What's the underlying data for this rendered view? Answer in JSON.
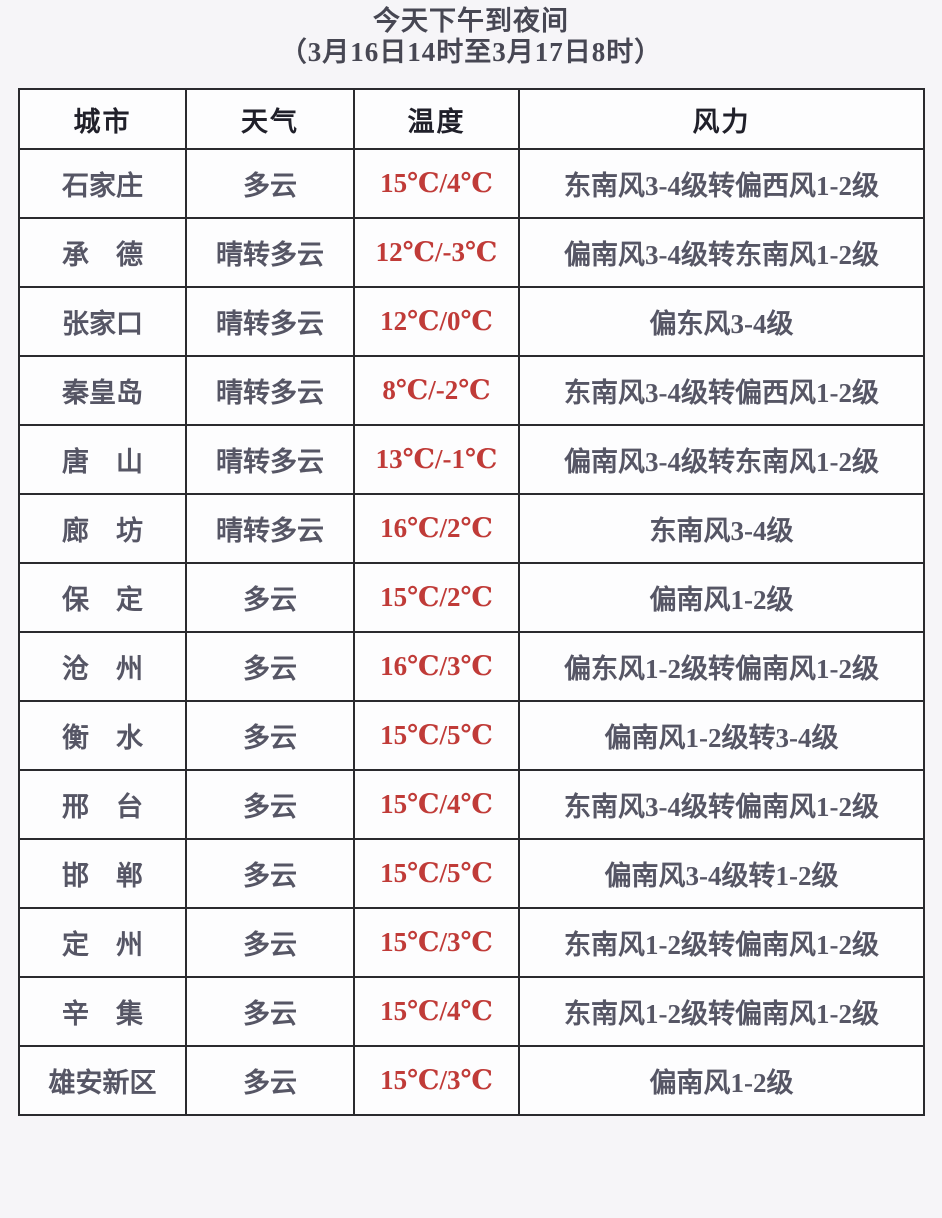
{
  "page": {
    "title": "今天下午到夜间",
    "subtitle": "（3月16日14时至3月17日8时）"
  },
  "colors": {
    "page_background": "#f6f5f8",
    "cell_background": "#fdfdfe",
    "border": "#2a2a2e",
    "title_text": "#474753",
    "header_text": "#20202a",
    "body_text": "#565665",
    "temperature_text": "#c03b38"
  },
  "table": {
    "headers": {
      "city": "城市",
      "weather": "天气",
      "temperature": "温度",
      "wind": "风力"
    },
    "rows": [
      {
        "city": "石家庄",
        "weather": "多云",
        "temperature": "15℃/4℃",
        "wind": "东南风3-4级转偏西风1-2级"
      },
      {
        "city": "承　德",
        "weather": "晴转多云",
        "temperature": "12℃/-3℃",
        "wind": "偏南风3-4级转东南风1-2级"
      },
      {
        "city": "张家口",
        "weather": "晴转多云",
        "temperature": "12℃/0℃",
        "wind": "偏东风3-4级"
      },
      {
        "city": "秦皇岛",
        "weather": "晴转多云",
        "temperature": "8℃/-2℃",
        "wind": "东南风3-4级转偏西风1-2级"
      },
      {
        "city": "唐　山",
        "weather": "晴转多云",
        "temperature": "13℃/-1℃",
        "wind": "偏南风3-4级转东南风1-2级"
      },
      {
        "city": "廊　坊",
        "weather": "晴转多云",
        "temperature": "16℃/2℃",
        "wind": "东南风3-4级"
      },
      {
        "city": "保　定",
        "weather": "多云",
        "temperature": "15℃/2℃",
        "wind": "偏南风1-2级"
      },
      {
        "city": "沧　州",
        "weather": "多云",
        "temperature": "16℃/3℃",
        "wind": "偏东风1-2级转偏南风1-2级"
      },
      {
        "city": "衡　水",
        "weather": "多云",
        "temperature": "15℃/5℃",
        "wind": "偏南风1-2级转3-4级"
      },
      {
        "city": "邢　台",
        "weather": "多云",
        "temperature": "15℃/4℃",
        "wind": "东南风3-4级转偏南风1-2级"
      },
      {
        "city": "邯　郸",
        "weather": "多云",
        "temperature": "15℃/5℃",
        "wind": "偏南风3-4级转1-2级"
      },
      {
        "city": "定　州",
        "weather": "多云",
        "temperature": "15℃/3℃",
        "wind": "东南风1-2级转偏南风1-2级"
      },
      {
        "city": "辛　集",
        "weather": "多云",
        "temperature": "15℃/4℃",
        "wind": "东南风1-2级转偏南风1-2级"
      },
      {
        "city": "雄安新区",
        "weather": "多云",
        "temperature": "15℃/3℃",
        "wind": "偏南风1-2级"
      }
    ]
  }
}
